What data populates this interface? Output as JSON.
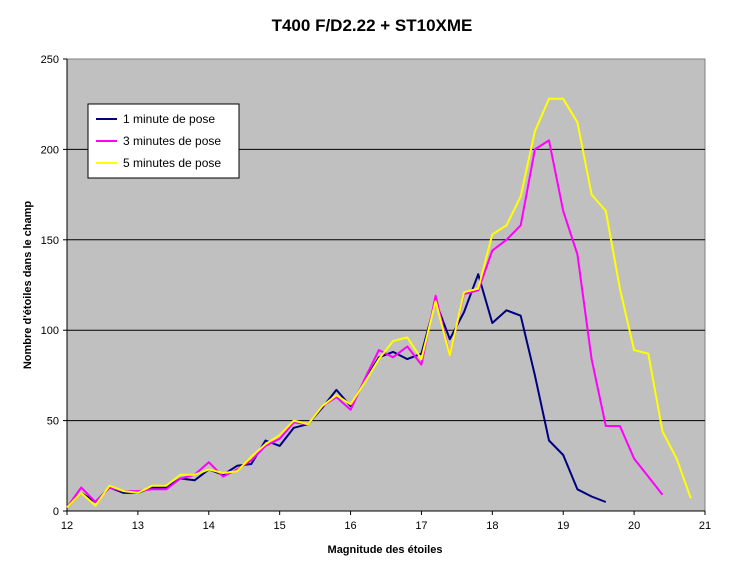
{
  "chart_data": {
    "type": "line",
    "title": "T400 F/D2.22 + ST10XME",
    "xlabel": "Magnitude des étoiles",
    "ylabel": "Nombre d'étoiles dans le champ",
    "xlim": [
      12,
      21
    ],
    "ylim": [
      0,
      250
    ],
    "xticks": [
      12,
      13,
      14,
      15,
      16,
      17,
      18,
      19,
      20,
      21
    ],
    "yticks": [
      0,
      50,
      100,
      150,
      200,
      250
    ],
    "grid": "horizontal",
    "plot_background": "#c0c0c0",
    "legend_position": "top-left",
    "series": [
      {
        "name": "1 minute de pose",
        "color": "#000080",
        "x": [
          12.0,
          12.2,
          12.4,
          12.6,
          12.8,
          13.0,
          13.2,
          13.4,
          13.6,
          13.8,
          14.0,
          14.2,
          14.4,
          14.6,
          14.8,
          15.0,
          15.2,
          15.4,
          15.6,
          15.8,
          16.0,
          16.2,
          16.4,
          16.6,
          16.8,
          17.0,
          17.2,
          17.4,
          17.6,
          17.8,
          18.0,
          18.2,
          18.4,
          18.6,
          18.8,
          19.0,
          19.2,
          19.4,
          19.6
        ],
        "y": [
          2,
          10,
          5,
          13,
          10,
          10,
          13,
          13,
          18,
          17,
          23,
          20,
          25,
          26,
          39,
          36,
          46,
          48,
          57,
          67,
          58,
          72,
          85,
          88,
          84,
          87,
          116,
          95,
          110,
          131,
          104,
          111,
          108,
          75,
          39,
          31,
          12,
          8,
          5
        ]
      },
      {
        "name": "3 minutes de pose",
        "color": "#ff00ff",
        "x": [
          12.0,
          12.2,
          12.4,
          12.6,
          12.8,
          13.0,
          13.2,
          13.4,
          13.6,
          13.8,
          14.0,
          14.2,
          14.4,
          14.6,
          14.8,
          15.0,
          15.2,
          15.4,
          15.6,
          15.8,
          16.0,
          16.2,
          16.4,
          16.6,
          16.8,
          17.0,
          17.2,
          17.4,
          17.6,
          17.8,
          18.0,
          18.2,
          18.4,
          18.6,
          18.8,
          19.0,
          19.2,
          19.4,
          19.6,
          19.8,
          20.0,
          20.2,
          20.4
        ],
        "y": [
          2,
          13,
          5,
          13,
          11,
          11,
          12,
          12,
          18,
          20,
          27,
          19,
          23,
          28,
          36,
          40,
          49,
          48,
          58,
          63,
          56,
          73,
          89,
          85,
          91,
          81,
          119,
          86,
          120,
          122,
          144,
          150,
          158,
          200,
          205,
          166,
          142,
          84,
          47,
          47,
          29,
          19,
          9
        ]
      },
      {
        "name": "5 minutes de pose",
        "color": "#ffff00",
        "x": [
          12.0,
          12.2,
          12.4,
          12.6,
          12.8,
          13.0,
          13.2,
          13.4,
          13.6,
          13.8,
          14.0,
          14.2,
          14.4,
          14.6,
          14.8,
          15.0,
          15.2,
          15.4,
          15.6,
          15.8,
          16.0,
          16.2,
          16.4,
          16.6,
          16.8,
          17.0,
          17.2,
          17.4,
          17.6,
          17.8,
          18.0,
          18.2,
          18.4,
          18.6,
          18.8,
          19.0,
          19.2,
          19.4,
          19.6,
          19.8,
          20.0,
          20.2,
          20.4,
          20.6,
          20.8
        ],
        "y": [
          2,
          10,
          3,
          14,
          11,
          10,
          14,
          14,
          20,
          20,
          23,
          21,
          22,
          30,
          37,
          42,
          50,
          48,
          58,
          64,
          59,
          71,
          84,
          94,
          96,
          84,
          116,
          86,
          121,
          123,
          153,
          158,
          174,
          210,
          228,
          228,
          215,
          175,
          166,
          123,
          89,
          87,
          44,
          29,
          7
        ]
      }
    ]
  }
}
